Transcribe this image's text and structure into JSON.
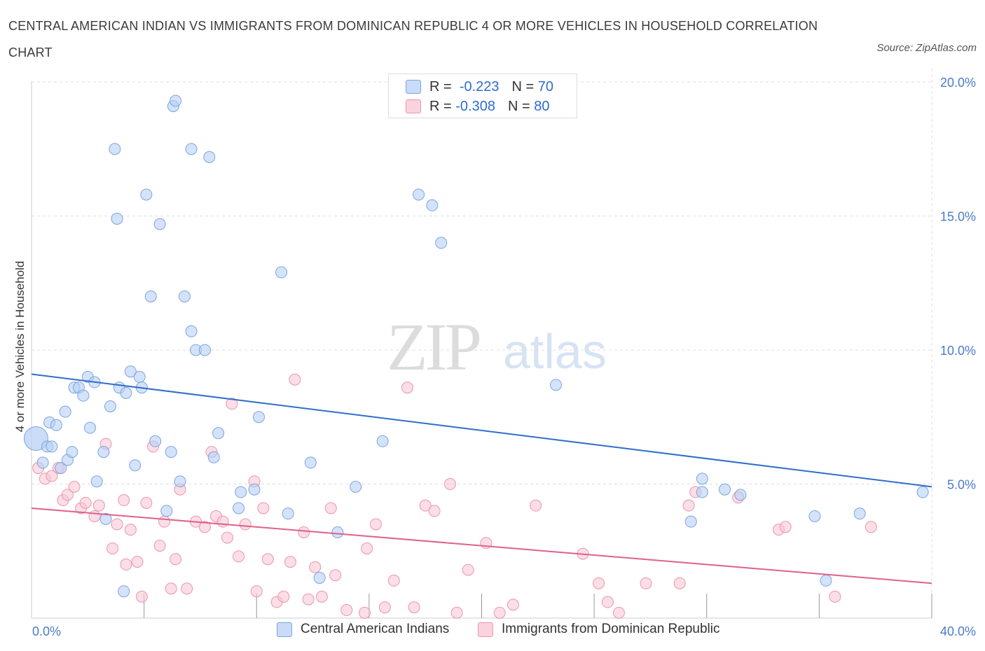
{
  "title": "CENTRAL AMERICAN INDIAN VS IMMIGRANTS FROM DOMINICAN REPUBLIC 4 OR MORE VEHICLES IN HOUSEHOLD CORRELATION CHART",
  "source": "Source: ZipAtlas.com",
  "watermark": {
    "zip": "ZIP",
    "atlas": "atlas"
  },
  "legend_top": [
    {
      "r_label": "R =",
      "r_value": "-0.223",
      "n_label": "N =",
      "n_value": "70"
    },
    {
      "r_label": "R =",
      "r_value": "-0.308",
      "n_label": "N =",
      "n_value": "80"
    }
  ],
  "colors": {
    "blue_fill": "#b8d0f5",
    "blue_stroke": "#7aa5e0",
    "blue_line": "#2f6dcc",
    "pink_fill": "#f8c8d6",
    "pink_stroke": "#ea95b0",
    "pink_line": "#e0608c",
    "grid": "#dddddd",
    "tick": "#4a7cc9"
  },
  "chart_data": {
    "type": "scatter",
    "title": "CENTRAL AMERICAN INDIAN VS IMMIGRANTS FROM DOMINICAN REPUBLIC 4 OR MORE VEHICLES IN HOUSEHOLD CORRELATION CHART",
    "xlabel": "",
    "ylabel": "4 or more Vehicles in Household",
    "xlim": [
      0,
      40
    ],
    "ylim": [
      0,
      20.5
    ],
    "x_tick_labels": [
      {
        "value": 0,
        "label": "0.0%"
      },
      {
        "value": 40,
        "label": "40.0%"
      }
    ],
    "y_tick_labels": [
      {
        "value": 5,
        "label": "5.0%"
      },
      {
        "value": 10,
        "label": "10.0%"
      },
      {
        "value": 15,
        "label": "15.0%"
      },
      {
        "value": 20,
        "label": "20.0%"
      }
    ],
    "grid": true,
    "legend_position": "bottom",
    "series": [
      {
        "name": "Central American Indians",
        "color": "#7aa5e0",
        "regression": {
          "x": [
            0,
            40
          ],
          "y": [
            9.1,
            4.9
          ]
        },
        "points": [
          [
            0.2,
            6.7
          ],
          [
            0.5,
            5.8
          ],
          [
            0.7,
            6.4
          ],
          [
            0.8,
            7.3
          ],
          [
            0.9,
            6.4
          ],
          [
            1.1,
            7.2
          ],
          [
            1.3,
            5.6
          ],
          [
            1.5,
            7.7
          ],
          [
            1.6,
            5.9
          ],
          [
            1.8,
            6.2
          ],
          [
            1.9,
            8.6
          ],
          [
            2.1,
            8.6
          ],
          [
            2.3,
            8.3
          ],
          [
            2.5,
            9.0
          ],
          [
            2.6,
            7.1
          ],
          [
            2.8,
            8.8
          ],
          [
            2.9,
            5.1
          ],
          [
            3.2,
            6.2
          ],
          [
            3.3,
            3.7
          ],
          [
            3.5,
            7.9
          ],
          [
            3.7,
            17.5
          ],
          [
            3.8,
            14.9
          ],
          [
            3.9,
            8.6
          ],
          [
            4.1,
            1.0
          ],
          [
            4.2,
            8.4
          ],
          [
            4.4,
            9.2
          ],
          [
            4.6,
            5.7
          ],
          [
            4.8,
            9.0
          ],
          [
            4.9,
            8.6
          ],
          [
            5.1,
            15.8
          ],
          [
            5.3,
            12.0
          ],
          [
            5.5,
            6.6
          ],
          [
            5.7,
            14.7
          ],
          [
            6.0,
            4.0
          ],
          [
            6.2,
            6.2
          ],
          [
            6.3,
            19.1
          ],
          [
            6.4,
            19.3
          ],
          [
            6.6,
            5.1
          ],
          [
            6.8,
            12.0
          ],
          [
            7.1,
            10.7
          ],
          [
            7.1,
            17.5
          ],
          [
            7.3,
            10.0
          ],
          [
            7.7,
            10.0
          ],
          [
            7.9,
            17.2
          ],
          [
            8.1,
            6.0
          ],
          [
            8.3,
            6.9
          ],
          [
            9.2,
            4.1
          ],
          [
            9.3,
            4.7
          ],
          [
            9.9,
            4.8
          ],
          [
            10.1,
            7.5
          ],
          [
            11.1,
            12.9
          ],
          [
            11.4,
            3.9
          ],
          [
            12.4,
            5.8
          ],
          [
            12.8,
            1.5
          ],
          [
            13.6,
            3.2
          ],
          [
            14.4,
            4.9
          ],
          [
            15.6,
            6.6
          ],
          [
            17.2,
            15.8
          ],
          [
            17.8,
            15.4
          ],
          [
            18.2,
            14.0
          ],
          [
            23.3,
            8.7
          ],
          [
            29.3,
            3.6
          ],
          [
            29.8,
            5.2
          ],
          [
            29.8,
            4.7
          ],
          [
            30.8,
            4.8
          ],
          [
            31.5,
            4.6
          ],
          [
            34.8,
            3.8
          ],
          [
            35.3,
            1.4
          ],
          [
            36.8,
            3.9
          ],
          [
            39.6,
            4.7
          ]
        ]
      },
      {
        "name": "Immigrants from Dominican Republic",
        "color": "#ea95b0",
        "regression": {
          "x": [
            0,
            40
          ],
          "y": [
            4.1,
            1.3
          ]
        },
        "points": [
          [
            0.3,
            5.6
          ],
          [
            0.6,
            5.2
          ],
          [
            0.9,
            5.3
          ],
          [
            1.2,
            5.6
          ],
          [
            1.4,
            4.4
          ],
          [
            1.6,
            4.6
          ],
          [
            1.9,
            4.9
          ],
          [
            2.2,
            4.1
          ],
          [
            2.4,
            4.3
          ],
          [
            2.8,
            3.8
          ],
          [
            3.0,
            4.2
          ],
          [
            3.3,
            6.5
          ],
          [
            3.6,
            2.6
          ],
          [
            3.8,
            3.5
          ],
          [
            4.1,
            4.4
          ],
          [
            4.2,
            2.0
          ],
          [
            4.4,
            3.3
          ],
          [
            4.7,
            2.1
          ],
          [
            4.9,
            0.8
          ],
          [
            5.1,
            4.3
          ],
          [
            5.4,
            6.4
          ],
          [
            5.7,
            2.7
          ],
          [
            5.9,
            3.6
          ],
          [
            6.2,
            1.1
          ],
          [
            6.4,
            2.2
          ],
          [
            6.6,
            4.8
          ],
          [
            6.9,
            1.1
          ],
          [
            7.3,
            3.6
          ],
          [
            7.7,
            3.4
          ],
          [
            8.0,
            6.2
          ],
          [
            8.2,
            3.8
          ],
          [
            8.5,
            3.6
          ],
          [
            8.7,
            3.0
          ],
          [
            8.9,
            8.0
          ],
          [
            9.2,
            2.3
          ],
          [
            9.5,
            3.5
          ],
          [
            9.9,
            5.1
          ],
          [
            10.0,
            1.0
          ],
          [
            10.3,
            4.1
          ],
          [
            10.5,
            2.2
          ],
          [
            10.9,
            0.6
          ],
          [
            11.2,
            0.8
          ],
          [
            11.5,
            2.1
          ],
          [
            11.7,
            8.9
          ],
          [
            12.1,
            3.2
          ],
          [
            12.3,
            0.7
          ],
          [
            12.6,
            1.9
          ],
          [
            12.9,
            0.8
          ],
          [
            13.3,
            4.1
          ],
          [
            13.5,
            1.6
          ],
          [
            14.0,
            0.3
          ],
          [
            14.8,
            0.2
          ],
          [
            14.9,
            2.6
          ],
          [
            15.3,
            3.5
          ],
          [
            15.7,
            0.4
          ],
          [
            16.1,
            1.4
          ],
          [
            16.7,
            8.6
          ],
          [
            17.0,
            0.4
          ],
          [
            17.5,
            4.2
          ],
          [
            17.9,
            4.0
          ],
          [
            18.6,
            5.0
          ],
          [
            18.9,
            0.2
          ],
          [
            19.4,
            1.8
          ],
          [
            20.2,
            2.8
          ],
          [
            20.8,
            0.2
          ],
          [
            21.4,
            0.5
          ],
          [
            22.4,
            4.2
          ],
          [
            24.5,
            2.4
          ],
          [
            25.2,
            1.3
          ],
          [
            25.6,
            0.6
          ],
          [
            26.1,
            0.2
          ],
          [
            27.3,
            1.3
          ],
          [
            28.8,
            1.3
          ],
          [
            29.2,
            4.2
          ],
          [
            29.5,
            4.7
          ],
          [
            31.4,
            4.5
          ],
          [
            33.2,
            3.3
          ],
          [
            33.5,
            3.4
          ],
          [
            35.7,
            0.8
          ],
          [
            37.3,
            3.4
          ]
        ]
      }
    ]
  }
}
